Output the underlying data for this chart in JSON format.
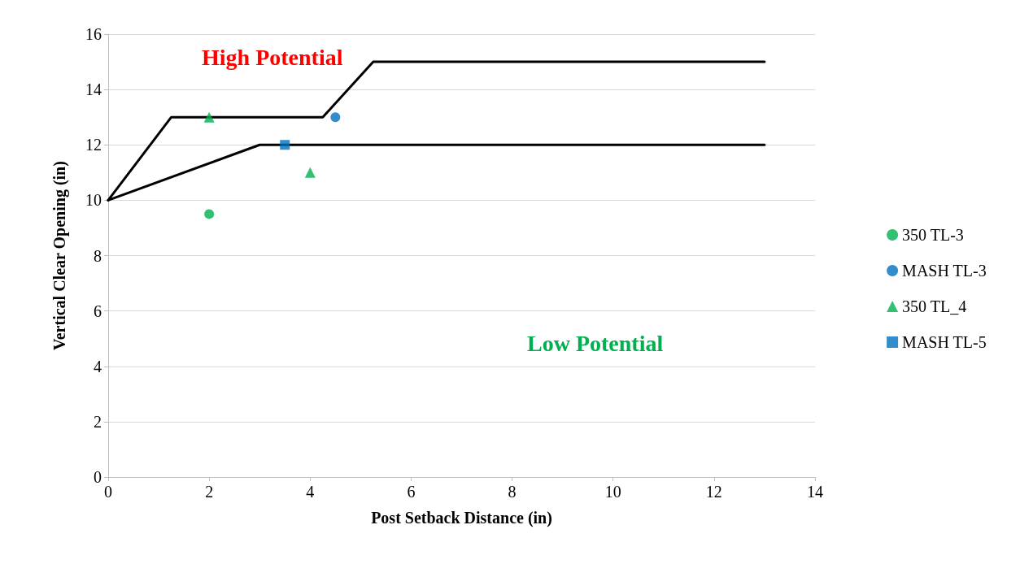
{
  "chart_data": {
    "type": "scatter",
    "xlabel": "Post Setback Distance (in)",
    "ylabel": "Vertical Clear Opening (in)",
    "xlim": [
      0,
      14
    ],
    "xticks": [
      0,
      2,
      4,
      6,
      8,
      10,
      12,
      14
    ],
    "ylim": [
      0,
      16
    ],
    "yticks": [
      0,
      2,
      4,
      6,
      8,
      10,
      12,
      14,
      16
    ],
    "grid": "y",
    "legend": "right",
    "annotations": [
      "High Potential",
      "Low Potential"
    ],
    "series": [
      {
        "type": "line",
        "color": "#000000",
        "marker": "none",
        "line_style": "solid",
        "x": [
          0,
          1.25,
          4.25,
          5.25,
          13
        ],
        "values": [
          10,
          13,
          13,
          15,
          15
        ]
      },
      {
        "type": "line",
        "color": "#000000",
        "marker": "none",
        "line_style": "solid",
        "x": [
          0,
          3,
          13
        ],
        "values": [
          10,
          12,
          12
        ]
      },
      {
        "name": "350 TL-3",
        "color": "#00b050",
        "marker": "circle",
        "x": [
          2
        ],
        "values": [
          9.5
        ]
      },
      {
        "name": "MASH TL-3",
        "color": "#0070c0",
        "marker": "circle",
        "x": [
          4.5
        ],
        "values": [
          13
        ]
      },
      {
        "name": "350 TL_4",
        "color": "#00b050",
        "marker": "triangle",
        "x": [
          2,
          4
        ],
        "values": [
          13,
          11
        ]
      },
      {
        "name": "MASH TL-5",
        "color": "#0070c0",
        "marker": "square",
        "x": [
          3.5
        ],
        "values": [
          12
        ]
      }
    ]
  }
}
